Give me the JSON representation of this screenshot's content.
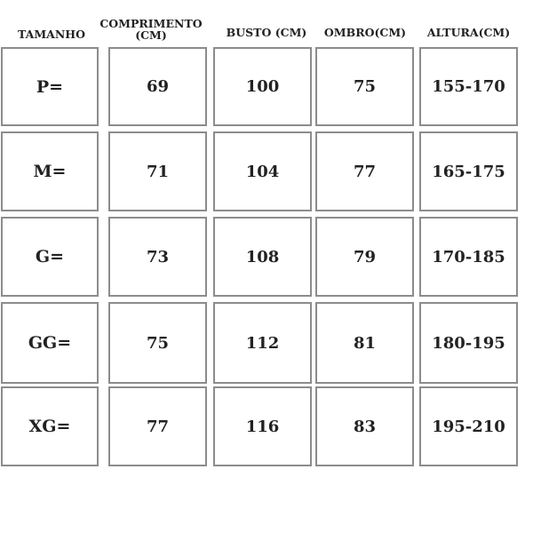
{
  "headers": [
    "TAMANHO",
    "COMPRIMENTO (CM)",
    "BUSTO (CM)",
    "OMBRO(CM)",
    "ALTURA(CM)"
  ],
  "rows": [
    {
      "size": "P=",
      "comprimento": "69",
      "busto": "100",
      "ombro": "75",
      "altura": "155-170"
    },
    {
      "size": "M=",
      "comprimento": "71",
      "busto": "104",
      "ombro": "77",
      "altura": "165-175"
    },
    {
      "size": "G=",
      "comprimento": "73",
      "busto": "108",
      "ombro": "79",
      "altura": "170-185"
    },
    {
      "size": "GG=",
      "comprimento": "75",
      "busto": "112",
      "ombro": "81",
      "altura": "180-195"
    },
    {
      "size": "XG=",
      "comprimento": "77",
      "busto": "116",
      "ombro": "83",
      "altura": "195-210"
    }
  ]
}
